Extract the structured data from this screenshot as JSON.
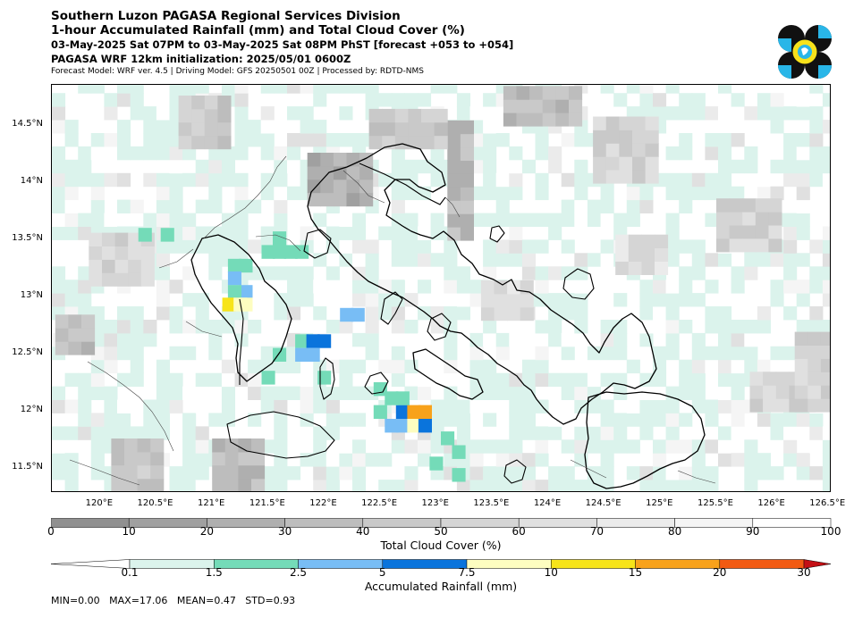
{
  "header": {
    "title_line1": "Southern Luzon PAGASA Regional Services Division",
    "title_line2": "1-hour Accumulated Rainfall (mm) and Total Cloud Cover (%)",
    "valid_time": "03-May-2025 Sat 07PM to 03-May-2025 Sat 08PM PhST [forecast +053 to +054]",
    "init_time": "PAGASA WRF 12km initialization: 2025/05/01 0600Z",
    "model_info": "Forecast Model: WRF ver. 4.5 | Driving Model: GFS 20250501 00Z | Processed by: RDTD-NMS"
  },
  "logo": {
    "name": "pagasa-logo-icon",
    "colors": [
      "#111111",
      "#29b6e8",
      "#f7e21b"
    ]
  },
  "map": {
    "lat_labels": [
      "14.5°N",
      "14°N",
      "13.5°N",
      "13°N",
      "12.5°N",
      "12°N",
      "11.5°N"
    ],
    "lat_values": [
      14.5,
      14,
      13.5,
      13,
      12.5,
      12,
      11.5
    ],
    "lon_labels": [
      "120°E",
      "120.5°E",
      "121°E",
      "121.5°E",
      "122°E",
      "122.5°E",
      "123°E",
      "123.5°E",
      "124°E",
      "124.5°E",
      "125°E",
      "125.5°E",
      "126°E",
      "126.5°E"
    ],
    "lon_values": [
      120,
      120.5,
      121,
      121.5,
      122,
      122.5,
      123,
      123.5,
      124,
      124.5,
      125,
      125.5,
      126,
      126.5
    ],
    "lon_range": [
      119.57,
      126.53
    ],
    "lat_range": [
      11.29,
      14.86
    ],
    "grid_deg": 0.1166
  },
  "cloud_colorbar": {
    "ticks": [
      "0",
      "10",
      "20",
      "30",
      "40",
      "50",
      "60",
      "70",
      "80",
      "90",
      "100"
    ],
    "colors": [
      "#909090",
      "#a0a0a0",
      "#afafaf",
      "#bdbdbd",
      "#c9c9c9",
      "#d5d5d5",
      "#e0e0e0",
      "#ebebeb",
      "#f5f5f5",
      "#ffffff"
    ],
    "label": "Total Cloud Cover (%)"
  },
  "rain_colorbar": {
    "ticks": [
      "0.1",
      "1.5",
      "2.5",
      "5",
      "7.5",
      "10",
      "15",
      "20",
      "30"
    ],
    "colors": [
      "#ffffff",
      "#dbf3ec",
      "#74dbb8",
      "#78bdf5",
      "#0a74dc",
      "#fdfdc0",
      "#f7e419",
      "#f8a21b",
      "#f25a12",
      "#c41015"
    ],
    "label": "Accumulated Rainfall (mm)"
  },
  "stats": "MIN=0.00   MAX=17.06   MEAN=0.47   STD=0.93",
  "rain_cells": [
    {
      "lon": 121.5,
      "lat": 13.4,
      "mm": 2.0
    },
    {
      "lon": 121.6,
      "lat": 13.4,
      "mm": 2.0
    },
    {
      "lon": 121.7,
      "lat": 13.4,
      "mm": 2.0
    },
    {
      "lon": 121.8,
      "lat": 13.4,
      "mm": 2.0
    },
    {
      "lon": 121.2,
      "lat": 13.28,
      "mm": 2.0
    },
    {
      "lon": 121.3,
      "lat": 13.28,
      "mm": 2.0
    },
    {
      "lon": 121.2,
      "lat": 13.17,
      "mm": 3.5
    },
    {
      "lon": 121.3,
      "lat": 13.05,
      "mm": 3.5
    },
    {
      "lon": 121.2,
      "lat": 13.05,
      "mm": 2.0
    },
    {
      "lon": 121.15,
      "lat": 12.94,
      "mm": 12.0
    },
    {
      "lon": 121.3,
      "lat": 12.94,
      "mm": 8.5
    },
    {
      "lon": 121.25,
      "lat": 12.94,
      "mm": 8.5
    },
    {
      "lon": 122.2,
      "lat": 12.85,
      "mm": 3.5
    },
    {
      "lon": 122.3,
      "lat": 12.85,
      "mm": 3.5
    },
    {
      "lon": 121.8,
      "lat": 12.62,
      "mm": 2.0
    },
    {
      "lon": 121.9,
      "lat": 12.62,
      "mm": 6.0
    },
    {
      "lon": 122.0,
      "lat": 12.62,
      "mm": 6.0
    },
    {
      "lon": 121.8,
      "lat": 12.5,
      "mm": 3.5
    },
    {
      "lon": 121.9,
      "lat": 12.5,
      "mm": 3.5
    },
    {
      "lon": 121.6,
      "lat": 12.5,
      "mm": 2.0
    },
    {
      "lon": 122.7,
      "lat": 12.0,
      "mm": 6.0
    },
    {
      "lon": 122.8,
      "lat": 12.0,
      "mm": 17.0
    },
    {
      "lon": 122.9,
      "lat": 12.0,
      "mm": 17.0
    },
    {
      "lon": 122.6,
      "lat": 11.88,
      "mm": 3.5
    },
    {
      "lon": 122.7,
      "lat": 11.88,
      "mm": 3.5
    },
    {
      "lon": 122.8,
      "lat": 11.88,
      "mm": 8.5
    },
    {
      "lon": 122.9,
      "lat": 11.88,
      "mm": 6.0
    },
    {
      "lon": 122.6,
      "lat": 12.12,
      "mm": 2.0
    },
    {
      "lon": 122.7,
      "lat": 12.12,
      "mm": 2.0
    },
    {
      "lon": 122.5,
      "lat": 12.0,
      "mm": 2.0
    },
    {
      "lon": 123.1,
      "lat": 11.77,
      "mm": 2.0
    },
    {
      "lon": 123.2,
      "lat": 11.65,
      "mm": 2.0
    },
    {
      "lon": 123.0,
      "lat": 11.55,
      "mm": 2.0
    },
    {
      "lon": 123.2,
      "lat": 11.45,
      "mm": 2.0
    },
    {
      "lon": 120.4,
      "lat": 13.55,
      "mm": 2.0
    },
    {
      "lon": 120.6,
      "lat": 13.55,
      "mm": 2.0
    },
    {
      "lon": 121.6,
      "lat": 13.52,
      "mm": 2.0
    },
    {
      "lon": 122.0,
      "lat": 12.3,
      "mm": 2.0
    },
    {
      "lon": 121.5,
      "lat": 12.3,
      "mm": 2.0
    },
    {
      "lon": 122.5,
      "lat": 12.2,
      "mm": 2.0
    }
  ],
  "cloud_blocks": [
    {
      "lon0": 121.85,
      "lon1": 122.4,
      "lat0": 13.8,
      "lat1": 14.2,
      "pct": 15
    },
    {
      "lon0": 123.1,
      "lon1": 123.3,
      "lat0": 13.5,
      "lat1": 14.5,
      "pct": 20
    },
    {
      "lon0": 122.4,
      "lon1": 123.1,
      "lat0": 14.3,
      "lat1": 14.6,
      "pct": 30
    },
    {
      "lon0": 123.6,
      "lon1": 124.2,
      "lat0": 14.5,
      "lat1": 14.85,
      "pct": 25
    },
    {
      "lon0": 120.1,
      "lon1": 120.5,
      "lat0": 11.3,
      "lat1": 11.7,
      "pct": 30
    },
    {
      "lon0": 119.6,
      "lon1": 119.9,
      "lat0": 12.5,
      "lat1": 12.8,
      "pct": 25
    },
    {
      "lon0": 121.0,
      "lon1": 121.4,
      "lat0": 11.3,
      "lat1": 11.7,
      "pct": 20
    },
    {
      "lon0": 125.5,
      "lon1": 126.0,
      "lat0": 13.4,
      "lat1": 13.8,
      "pct": 40
    },
    {
      "lon0": 125.8,
      "lon1": 126.3,
      "lat0": 12.0,
      "lat1": 12.3,
      "pct": 40
    },
    {
      "lon0": 124.4,
      "lon1": 124.9,
      "lat0": 14.0,
      "lat1": 14.5,
      "pct": 45
    },
    {
      "lon0": 120.7,
      "lon1": 121.1,
      "lat0": 14.3,
      "lat1": 14.7,
      "pct": 35
    },
    {
      "lon0": 123.4,
      "lon1": 123.8,
      "lat0": 12.8,
      "lat1": 13.1,
      "pct": 50
    },
    {
      "lon0": 126.2,
      "lon1": 126.5,
      "lat0": 12.0,
      "lat1": 12.6,
      "pct": 40
    },
    {
      "lon0": 124.6,
      "lon1": 125.0,
      "lat0": 13.2,
      "lat1": 13.5,
      "pct": 55
    },
    {
      "lon0": 119.9,
      "lon1": 120.4,
      "lat0": 13.1,
      "lat1": 13.5,
      "pct": 45
    }
  ]
}
